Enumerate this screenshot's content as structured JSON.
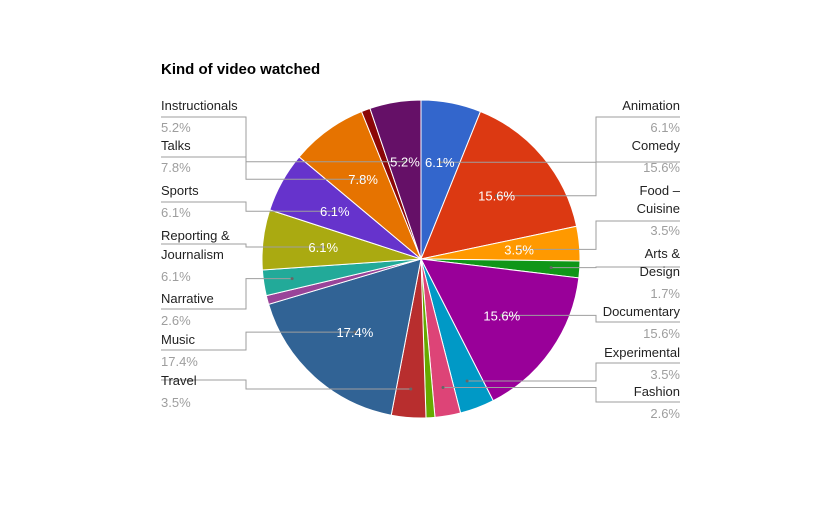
{
  "chart_data": {
    "type": "pie",
    "title": "Kind of video watched",
    "slices": [
      {
        "label": "Animation",
        "value": 6.1,
        "value_label": "6.1%",
        "color": "#3366cc",
        "show_in_slice": true
      },
      {
        "label": "Comedy",
        "value": 15.6,
        "value_label": "15.6%",
        "color": "#dc3912",
        "show_in_slice": true
      },
      {
        "label": "Food – Cuisine",
        "value": 3.5,
        "value_label": "3.5%",
        "color": "#ff9900",
        "show_in_slice": true
      },
      {
        "label": "Arts & Design",
        "value": 1.7,
        "value_label": "1.7%",
        "color": "#109618",
        "show_in_slice": false
      },
      {
        "label": "Documentary",
        "value": 15.6,
        "value_label": "15.6%",
        "color": "#990099",
        "show_in_slice": true
      },
      {
        "label": "Experimental",
        "value": 3.5,
        "value_label": "3.5%",
        "color": "#0099c6",
        "show_in_slice": false
      },
      {
        "label": "Fashion",
        "value": 2.6,
        "value_label": "2.6%",
        "color": "#dd4477",
        "show_in_slice": false
      },
      {
        "label": "",
        "value": 0.9,
        "value_label": "",
        "color": "#66aa00",
        "show_in_slice": false
      },
      {
        "label": "Travel",
        "value": 3.5,
        "value_label": "3.5%",
        "color": "#b82e2e",
        "show_in_slice": false
      },
      {
        "label": "Music",
        "value": 17.4,
        "value_label": "17.4%",
        "color": "#316395",
        "show_in_slice": true
      },
      {
        "label": "",
        "value": 0.9,
        "value_label": "",
        "color": "#994499",
        "show_in_slice": false
      },
      {
        "label": "Narrative",
        "value": 2.6,
        "value_label": "2.6%",
        "color": "#22aa99",
        "show_in_slice": false
      },
      {
        "label": "Reporting & Journalism",
        "value": 6.1,
        "value_label": "6.1%",
        "color": "#aaaa11",
        "show_in_slice": true
      },
      {
        "label": "Sports",
        "value": 6.1,
        "value_label": "6.1%",
        "color": "#6633cc",
        "show_in_slice": true
      },
      {
        "label": "Talks",
        "value": 7.8,
        "value_label": "7.8%",
        "color": "#e67300",
        "show_in_slice": true
      },
      {
        "label": "",
        "value": 0.9,
        "value_label": "",
        "color": "#8b0707",
        "show_in_slice": false
      },
      {
        "label": "Instructionals",
        "value": 5.2,
        "value_label": "5.2%",
        "color": "#651067",
        "show_in_slice": true
      }
    ],
    "legend": "labeled"
  }
}
